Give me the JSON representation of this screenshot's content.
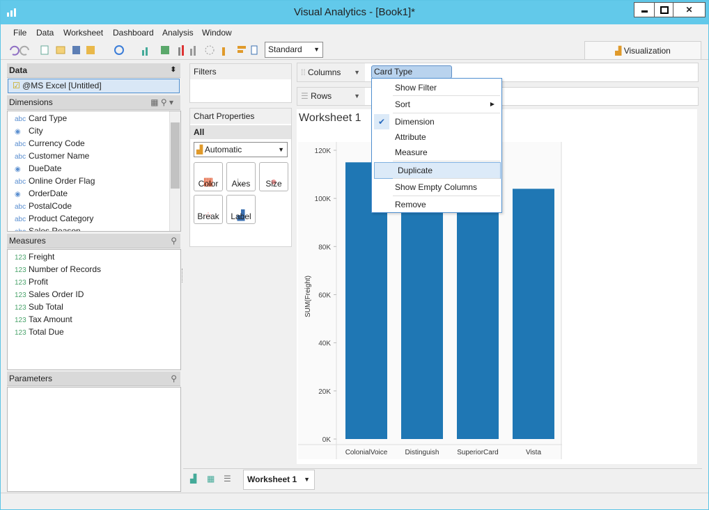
{
  "window": {
    "title": "Visual Analytics - [Book1]*"
  },
  "menu": [
    "File",
    "Data",
    "Worksheet",
    "Dashboard",
    "Analysis",
    "Window"
  ],
  "toolbar": {
    "mode": "Standard",
    "visualization_tab": "Visualization"
  },
  "data_panel": {
    "title": "Data",
    "source": "@MS Excel [Untitled]",
    "dimensions_title": "Dimensions",
    "dimensions": [
      {
        "icon": "abc",
        "name": "Card Type"
      },
      {
        "name": "City"
      },
      {
        "icon": "abc",
        "name": "Currency Code"
      },
      {
        "icon": "abc",
        "name": "Customer Name"
      },
      {
        "name": "DueDate"
      },
      {
        "icon": "abc",
        "name": "Online Order Flag"
      },
      {
        "name": "OrderDate"
      },
      {
        "icon": "abc",
        "name": "PostalCode"
      },
      {
        "icon": "abc",
        "name": "Product Category"
      },
      {
        "icon": "abc",
        "name": "Sales Reason"
      }
    ],
    "measures_title": "Measures",
    "measures": [
      {
        "icon": "123",
        "name": "Freight"
      },
      {
        "icon": "123",
        "name": "Number of Records"
      },
      {
        "icon": "123",
        "name": "Profit"
      },
      {
        "icon": "123",
        "name": "Sales Order ID"
      },
      {
        "icon": "123",
        "name": "Sub Total"
      },
      {
        "icon": "123",
        "name": "Tax Amount"
      },
      {
        "icon": "123",
        "name": "Total Due"
      }
    ],
    "parameters_title": "Parameters"
  },
  "filters": {
    "title": "Filters"
  },
  "chart_properties": {
    "title": "Chart Properties",
    "section": "All",
    "chart_kind": "Automatic",
    "buttons": [
      "Color",
      "Axes",
      "Size",
      "Break",
      "Label"
    ]
  },
  "shelves": {
    "columns": "Columns",
    "column_pill": "Card Type",
    "rows": "Rows"
  },
  "context_menu": [
    {
      "label": "Show Filter"
    },
    {
      "label": "Sort",
      "submenu": true
    },
    {
      "label": "Dimension",
      "checked": true
    },
    {
      "label": "Attribute"
    },
    {
      "label": "Measure"
    },
    {
      "label": "Duplicate",
      "highlighted": true
    },
    {
      "label": "Show Empty Columns"
    },
    {
      "label": "Remove"
    }
  ],
  "worksheet": {
    "title": "Worksheet 1",
    "tab": "Worksheet 1"
  },
  "chart_data": {
    "type": "bar",
    "y_label": "SUM(Freight)",
    "categories": [
      "ColonialVoice",
      "Distinguish",
      "SuperiorCard",
      "Vista"
    ],
    "values": [
      115000,
      113000,
      114000,
      104000
    ],
    "color": "#1f77b4",
    "ylim": [
      0,
      123000
    ],
    "yticks": [
      {
        "value": 0,
        "label": "0K"
      },
      {
        "value": 20000,
        "label": "20K"
      },
      {
        "value": 40000,
        "label": "40K"
      },
      {
        "value": 60000,
        "label": "60K"
      },
      {
        "value": 80000,
        "label": "80K"
      },
      {
        "value": 100000,
        "label": "100K"
      },
      {
        "value": 120000,
        "label": "120K"
      }
    ]
  }
}
